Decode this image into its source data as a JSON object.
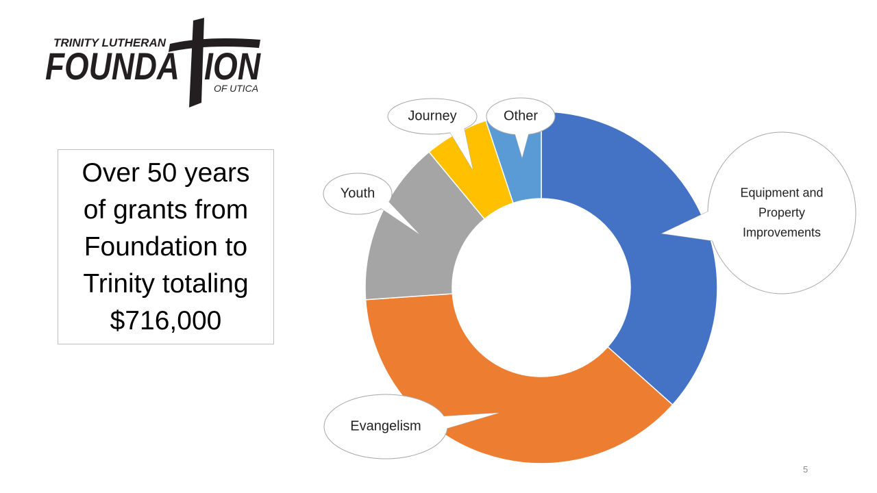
{
  "logo": {
    "top": "TRINITY LUTHERAN",
    "left": "FOUNDA",
    "right": "ION",
    "bottom": "OF UTICA"
  },
  "text_box": {
    "lines": [
      "Over 50 years",
      "of grants from",
      "Foundation to",
      "Trinity totaling",
      "$716,000"
    ]
  },
  "page_number": "5",
  "chart_data": {
    "type": "donut",
    "categories": [
      "Equipment and Property Improvements",
      "Evangelism",
      "Youth",
      "Journey",
      "Other"
    ],
    "values": [
      36.6,
      37.3,
      15.1,
      5.9,
      5.1
    ],
    "colors": [
      "#4472c4",
      "#ed7d31",
      "#a5a5a5",
      "#ffc000",
      "#5b9bd5"
    ]
  }
}
